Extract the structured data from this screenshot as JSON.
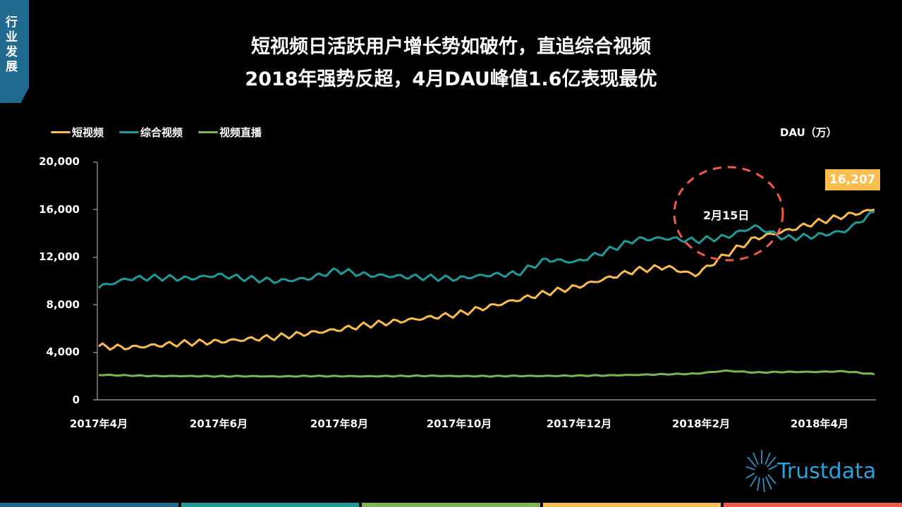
{
  "side_tab": {
    "label": "行业发展",
    "color": "#20698f"
  },
  "title": {
    "line1": "短视频日活跃用户增长势如破竹，直追综合视频",
    "line2": "2018年强势反超，4月DAU峰值1.6亿表现最优"
  },
  "legend": [
    {
      "label": "短视频",
      "color": "#fbbd4d"
    },
    {
      "label": "综合视频",
      "color": "#1f9a97"
    },
    {
      "label": "视频直播",
      "color": "#7ab651"
    }
  ],
  "unit_label": "DAU（万）",
  "callout": {
    "value": "16,207",
    "color": "#fbbd4d"
  },
  "annotation": {
    "label": "2月15日",
    "circle_color": "#f15a4a"
  },
  "logo": {
    "text": "Trustdata"
  },
  "bottom_bar_colors": [
    "#20698f",
    "#1f9a97",
    "#7ab651",
    "#fbbd4d",
    "#f15a4a"
  ],
  "chart_data": {
    "type": "line",
    "title": "短视频日活跃用户增长势如破竹，直追综合视频 2018年强势反超，4月DAU峰值1.6亿表现最优",
    "xlabel": "",
    "ylabel": "DAU（万）",
    "ylim": [
      0,
      20000
    ],
    "yticks": [
      "0",
      "4,000",
      "8,000",
      "12,000",
      "16,000",
      "20,000"
    ],
    "xticks": [
      "2017年4月",
      "2017年6月",
      "2017年8月",
      "2017年10月",
      "2017年12月",
      "2018年2月",
      "2018年4月"
    ],
    "grid": false,
    "legend_position": "top-left",
    "x": [
      "2017-04-01",
      "2017-04-15",
      "2017-05-01",
      "2017-05-15",
      "2017-06-01",
      "2017-06-15",
      "2017-07-01",
      "2017-07-15",
      "2017-08-01",
      "2017-08-15",
      "2017-09-01",
      "2017-09-15",
      "2017-10-01",
      "2017-10-15",
      "2017-11-01",
      "2017-11-15",
      "2017-12-01",
      "2017-12-15",
      "2018-01-01",
      "2018-01-15",
      "2018-02-01",
      "2018-02-15",
      "2018-03-01",
      "2018-03-15",
      "2018-04-01",
      "2018-04-15",
      "2018-04-30"
    ],
    "series": [
      {
        "name": "短视频",
        "color": "#fbbd4d",
        "values": [
          4500,
          4400,
          4600,
          4800,
          4900,
          5100,
          5300,
          5600,
          5900,
          6300,
          6600,
          6900,
          7200,
          7800,
          8400,
          9000,
          9500,
          10200,
          10900,
          11200,
          10500,
          12200,
          13600,
          14200,
          14900,
          15500,
          16000
        ]
      },
      {
        "name": "综合视频",
        "color": "#1f9a97",
        "values": [
          9500,
          10200,
          10300,
          10200,
          10500,
          10200,
          10000,
          10200,
          10900,
          10500,
          10400,
          10300,
          10200,
          10500,
          10600,
          11800,
          11600,
          12500,
          13500,
          13600,
          13400,
          13700,
          14600,
          13600,
          13800,
          14200,
          15800
        ]
      },
      {
        "name": "视频直播",
        "color": "#7ab651",
        "values": [
          2100,
          2050,
          2000,
          2000,
          1980,
          1990,
          1970,
          2000,
          1990,
          1980,
          2000,
          2020,
          2000,
          1990,
          2010,
          2010,
          2030,
          2050,
          2100,
          2150,
          2200,
          2450,
          2300,
          2350,
          2350,
          2400,
          2150
        ]
      }
    ],
    "annotations": [
      {
        "label": "2月15日",
        "type": "dashed-circle"
      },
      {
        "label": "16,207",
        "type": "end-value-callout",
        "series": "短视频"
      }
    ]
  }
}
